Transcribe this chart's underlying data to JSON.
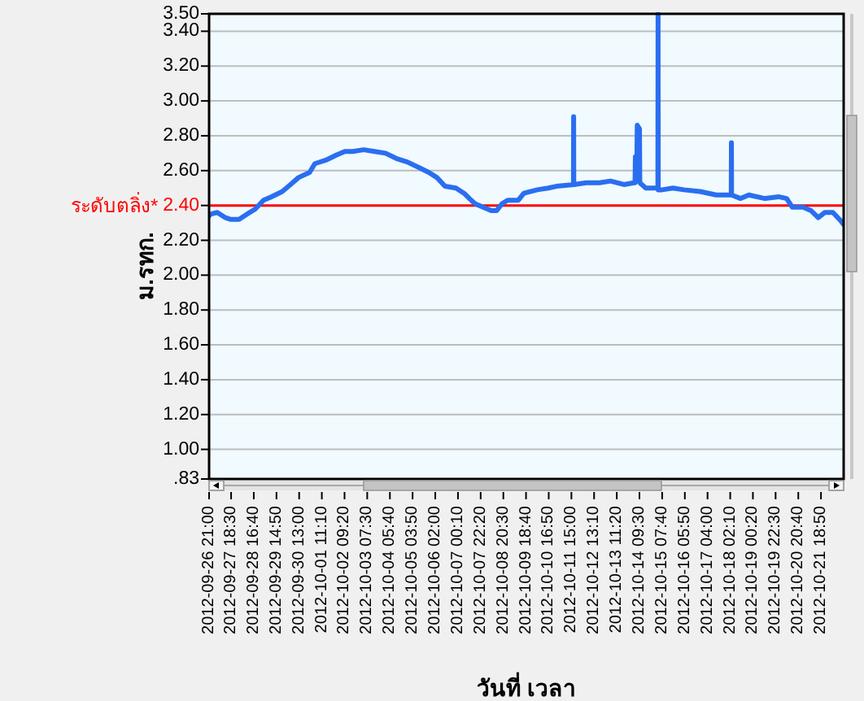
{
  "chart_data": {
    "type": "line",
    "xlabel": "วันที่ เวลา",
    "ylabel": "ม.รทก.",
    "color": "#2a6ef0",
    "x": [
      "2012-09-26T21:00",
      "2012-09-26T22:30",
      "2012-09-27T05:00",
      "2012-09-27T13:00",
      "2012-09-27T18:20",
      "2012-09-28T02:20",
      "2012-09-28T10:10",
      "2012-09-28T18:10",
      "2012-09-29T02:10",
      "2012-09-29T10:00",
      "2012-09-29T20:30",
      "2012-09-30T04:30",
      "2012-09-30T12:20",
      "2012-09-30T23:10",
      "2012-10-01T04:20",
      "2012-10-01T15:00",
      "2012-10-02T01:40",
      "2012-10-02T09:40",
      "2012-10-02T17:30",
      "2012-10-03T04:00",
      "2012-10-03T14:40",
      "2012-10-04T01:20",
      "2012-10-04T11:50",
      "2012-10-04T22:30",
      "2012-10-05T09:10",
      "2012-10-05T19:40",
      "2012-10-06T03:40",
      "2012-10-06T11:30",
      "2012-10-06T22:10",
      "2012-10-07T06:10",
      "2012-10-07T11:20",
      "2012-10-07T16:50",
      "2012-10-08T00:40",
      "2012-10-08T08:40",
      "2012-10-08T13:50",
      "2012-10-08T19:10",
      "2012-10-09T00:40",
      "2012-10-09T11:10",
      "2012-10-09T16:30",
      "2012-10-10T05:40",
      "2012-10-10T16:20",
      "2012-10-11T00:20",
      "2012-10-11T17:00",
      "2012-10-11T17:10",
      "2012-10-11T17:20",
      "2012-10-12T05:20",
      "2012-10-12T18:30",
      "2012-10-13T05:10",
      "2012-10-13T18:20",
      "2012-10-14T04:00",
      "2012-10-14T05:10",
      "2012-10-14T05:30",
      "2012-10-14T07:00",
      "2012-10-14T07:20",
      "2012-10-14T09:30",
      "2012-10-14T09:50",
      "2012-10-14T15:40",
      "2012-10-15T02:10",
      "2012-10-15T03:30",
      "2012-10-15T03:40",
      "2012-10-15T03:50",
      "2012-10-15T07:40",
      "2012-10-15T18:10",
      "2012-10-16T04:50",
      "2012-10-16T20:40",
      "2012-10-17T12:30",
      "2012-10-18T01:40",
      "2012-10-18T03:10",
      "2012-10-18T03:20",
      "2012-10-18T03:30",
      "2012-10-18T12:20",
      "2012-10-18T20:20",
      "2012-10-19T12:10",
      "2012-10-20T01:20",
      "2012-10-20T09:20",
      "2012-10-20T14:50",
      "2012-10-21T01:20",
      "2012-10-21T09:10",
      "2012-10-21T16:10",
      "2012-10-21T22:40",
      "2012-10-22T06:30",
      "2012-10-22T14:30",
      "2012-10-22T17:00"
    ],
    "values": [
      2.34,
      2.35,
      2.36,
      2.33,
      2.32,
      2.32,
      2.35,
      2.38,
      2.43,
      2.45,
      2.48,
      2.52,
      2.56,
      2.59,
      2.64,
      2.66,
      2.69,
      2.71,
      2.71,
      2.72,
      2.71,
      2.7,
      2.67,
      2.65,
      2.62,
      2.59,
      2.56,
      2.51,
      2.5,
      2.47,
      2.44,
      2.41,
      2.39,
      2.37,
      2.37,
      2.41,
      2.43,
      2.43,
      2.47,
      2.49,
      2.5,
      2.51,
      2.52,
      2.91,
      2.52,
      2.53,
      2.53,
      2.54,
      2.52,
      2.53,
      2.53,
      2.68,
      2.68,
      2.86,
      2.84,
      2.53,
      2.5,
      2.5,
      2.5,
      3.5,
      2.49,
      2.49,
      2.5,
      2.49,
      2.48,
      2.46,
      2.46,
      2.46,
      2.76,
      2.46,
      2.44,
      2.46,
      2.44,
      2.45,
      2.44,
      2.39,
      2.39,
      2.37,
      2.33,
      2.36,
      2.36,
      2.31,
      2.29
    ],
    "xlim": [
      "2012-09-26T21:00",
      "2012-10-22T17:00"
    ],
    "xticks": [
      {
        "value": "2012-09-26T21:00",
        "label": "2012-09-26 21:00"
      },
      {
        "value": "2012-09-27T18:30",
        "label": "2012-09-27 18:30"
      },
      {
        "value": "2012-09-28T16:40",
        "label": "2012-09-28 16:40"
      },
      {
        "value": "2012-09-29T14:50",
        "label": "2012-09-29 14:50"
      },
      {
        "value": "2012-09-30T13:00",
        "label": "2012-09-30 13:00"
      },
      {
        "value": "2012-10-01T11:10",
        "label": "2012-10-01 11:10"
      },
      {
        "value": "2012-10-02T09:20",
        "label": "2012-10-02 09:20"
      },
      {
        "value": "2012-10-03T07:30",
        "label": "2012-10-03 07:30"
      },
      {
        "value": "2012-10-04T05:40",
        "label": "2012-10-04 05:40"
      },
      {
        "value": "2012-10-05T03:50",
        "label": "2012-10-05 03:50"
      },
      {
        "value": "2012-10-06T02:00",
        "label": "2012-10-06 02:00"
      },
      {
        "value": "2012-10-07T00:10",
        "label": "2012-10-07 00:10"
      },
      {
        "value": "2012-10-07T22:20",
        "label": "2012-10-07 22:20"
      },
      {
        "value": "2012-10-08T20:30",
        "label": "2012-10-08 20:30"
      },
      {
        "value": "2012-10-09T18:40",
        "label": "2012-10-09 18:40"
      },
      {
        "value": "2012-10-10T16:50",
        "label": "2012-10-10 16:50"
      },
      {
        "value": "2012-10-11T15:00",
        "label": "2012-10-11 15:00"
      },
      {
        "value": "2012-10-12T13:10",
        "label": "2012-10-12 13:10"
      },
      {
        "value": "2012-10-13T11:20",
        "label": "2012-10-13 11:20"
      },
      {
        "value": "2012-10-14T09:30",
        "label": "2012-10-14 09:30"
      },
      {
        "value": "2012-10-15T07:40",
        "label": "2012-10-15 07:40"
      },
      {
        "value": "2012-10-16T05:50",
        "label": "2012-10-16 05:50"
      },
      {
        "value": "2012-10-17T04:00",
        "label": "2012-10-17 04:00"
      },
      {
        "value": "2012-10-18T02:10",
        "label": "2012-10-18 02:10"
      },
      {
        "value": "2012-10-19T00:20",
        "label": "2012-10-19 00:20"
      },
      {
        "value": "2012-10-19T22:30",
        "label": "2012-10-19 22:30"
      },
      {
        "value": "2012-10-20T20:40",
        "label": "2012-10-20 20:40"
      },
      {
        "value": "2012-10-21T18:50",
        "label": "2012-10-21 18:50"
      }
    ],
    "ylim": [
      0.83,
      3.5
    ],
    "yticks": [
      {
        "value": 0.83,
        "label": ".83"
      },
      {
        "value": 1,
        "label": "1.00"
      },
      {
        "value": 1.2,
        "label": "1.20"
      },
      {
        "value": 1.4,
        "label": "1.40"
      },
      {
        "value": 1.6,
        "label": "1.60"
      },
      {
        "value": 1.8,
        "label": "1.80"
      },
      {
        "value": 2,
        "label": "2.00"
      },
      {
        "value": 2.2,
        "label": "2.20"
      },
      {
        "value": 2.4,
        "label": "2.40"
      },
      {
        "value": 2.6,
        "label": "2.60"
      },
      {
        "value": 2.8,
        "label": "2.80"
      },
      {
        "value": 3,
        "label": "3.00"
      },
      {
        "value": 3.2,
        "label": "3.20"
      },
      {
        "value": 3.4,
        "label": "3.40"
      },
      {
        "value": 3.5,
        "label": "3.50"
      }
    ],
    "grid": "y",
    "ref_lines": [
      {
        "axis": "y",
        "value": 2.4,
        "label": "ระดับตลิ่ง*",
        "color": "#ff0000"
      }
    ]
  }
}
